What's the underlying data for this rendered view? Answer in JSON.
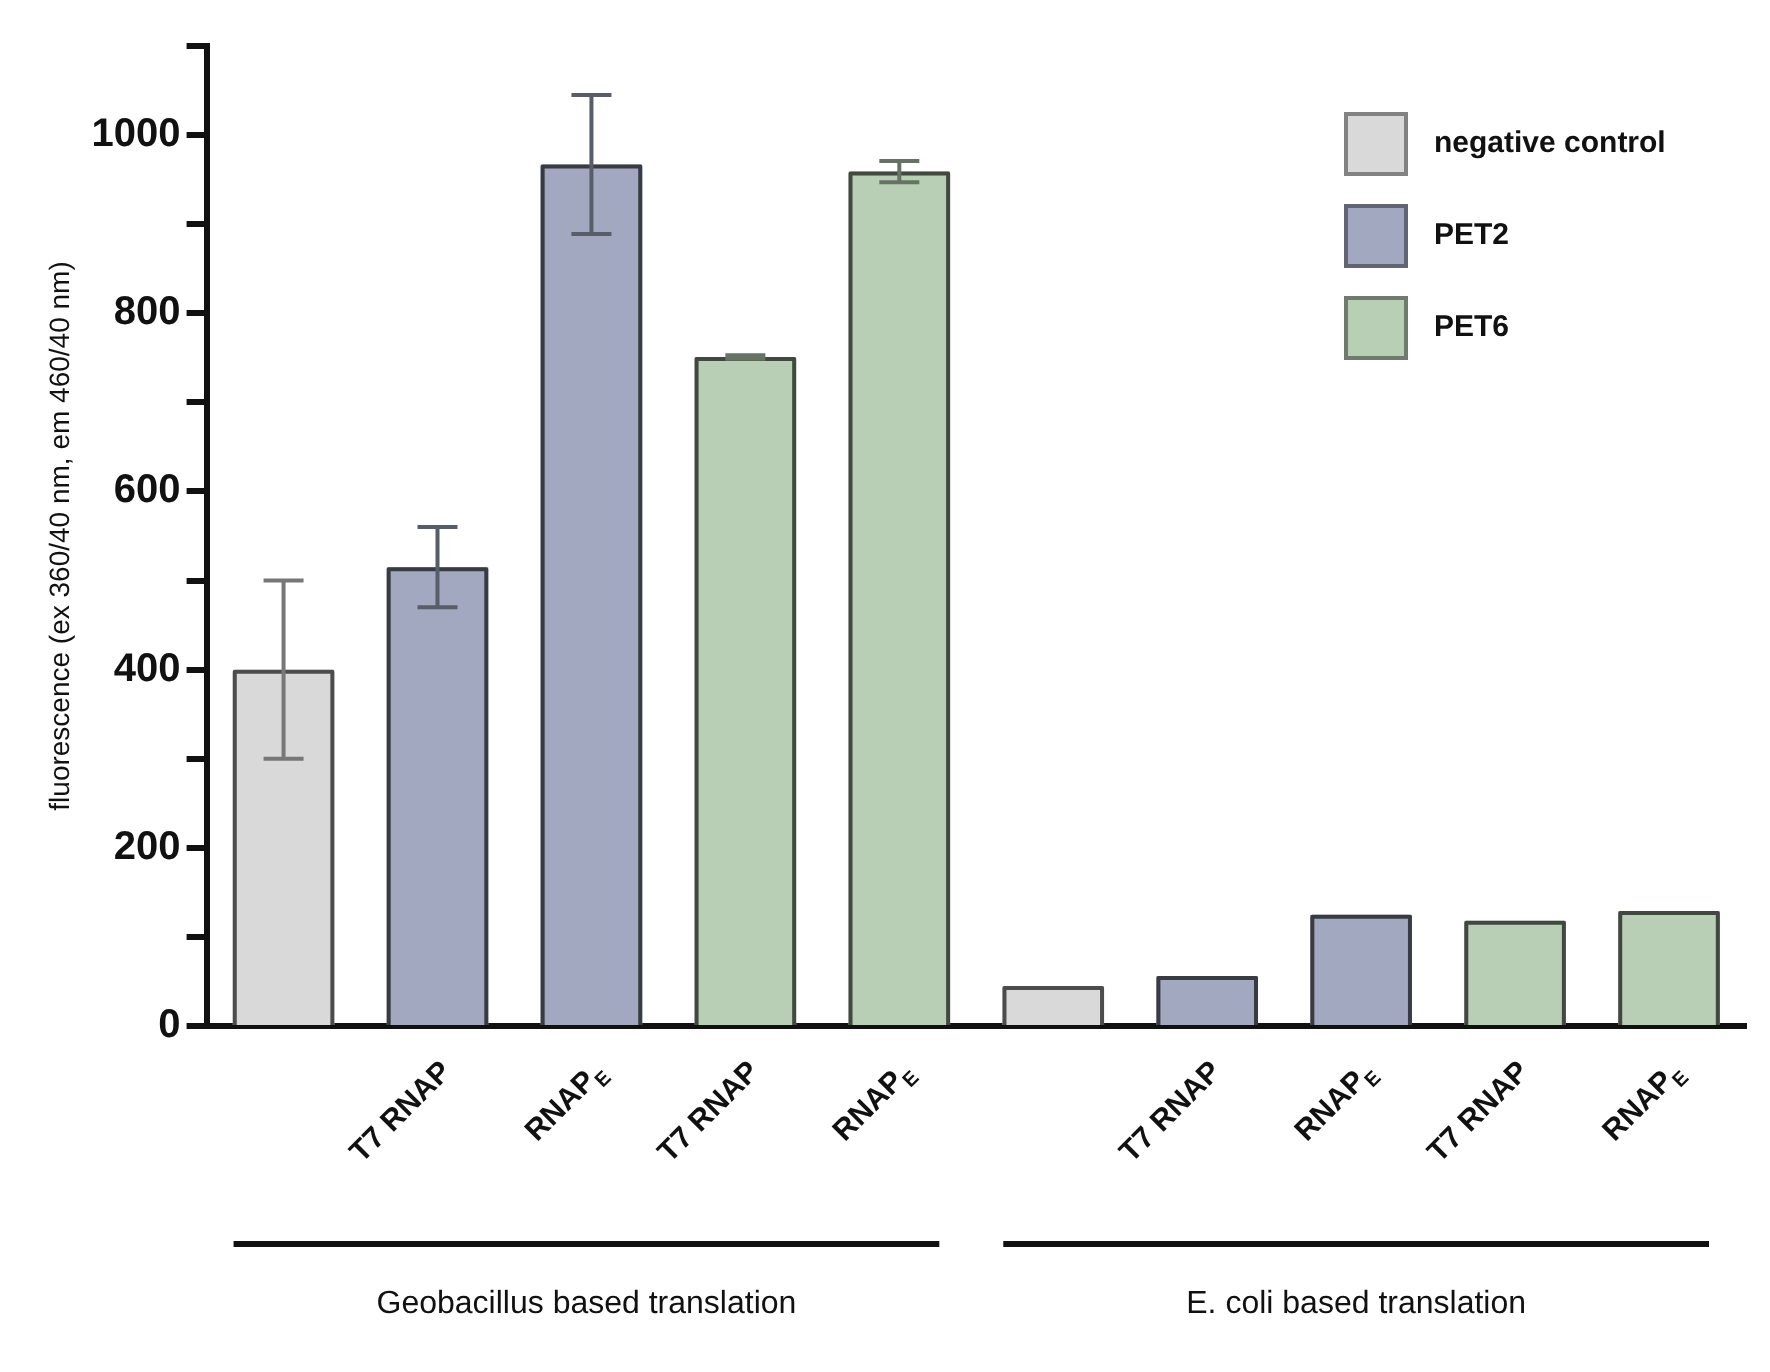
{
  "chart_data": {
    "type": "bar",
    "ylabel": "fluorescence (ex 360/40 nm, em 460/40 nm)",
    "categories": [
      null,
      "T7 RNAP",
      "RNAP$_{E}$",
      "T7 RNAP",
      "RNAP$_{E}$",
      null,
      "T7 RNAP",
      "RNAP$_{E}$",
      "T7 RNAP",
      "RNAP$_{E}$"
    ],
    "series": [
      {
        "name": "negative control",
        "color": "#d9d9d9",
        "values": [
          400,
          null,
          null,
          null,
          null,
          45,
          null,
          null,
          null,
          null
        ],
        "errors": [
          100,
          null,
          null,
          null,
          null,
          null,
          null,
          null,
          null,
          null
        ]
      },
      {
        "name": "PET2",
        "color": "#a2a8bf",
        "values": [
          null,
          515,
          967,
          null,
          null,
          null,
          56,
          125,
          null,
          null
        ],
        "errors": [
          null,
          45,
          78,
          null,
          null,
          null,
          null,
          null,
          null,
          null
        ]
      },
      {
        "name": "PET6",
        "color": "#b9cfb5",
        "values": [
          null,
          null,
          null,
          751,
          959,
          null,
          null,
          null,
          118,
          129
        ],
        "errors": [
          null,
          null,
          null,
          2,
          12,
          null,
          null,
          null,
          null,
          null
        ]
      }
    ],
    "ylim": [
      0,
      1100
    ],
    "yticks": [
      0,
      {
        "value": 100,
        "label": null
      },
      200,
      {
        "value": 300,
        "label": null
      },
      400,
      {
        "value": 500,
        "label": null
      },
      600,
      {
        "value": 700,
        "label": null
      },
      800,
      {
        "value": 900,
        "label": null
      },
      1000,
      {
        "value": 1100,
        "label": null
      }
    ],
    "grid": false,
    "legend": "top right",
    "annotations": [
      "Geobacillus based translation",
      "E. coli based translation"
    ]
  }
}
